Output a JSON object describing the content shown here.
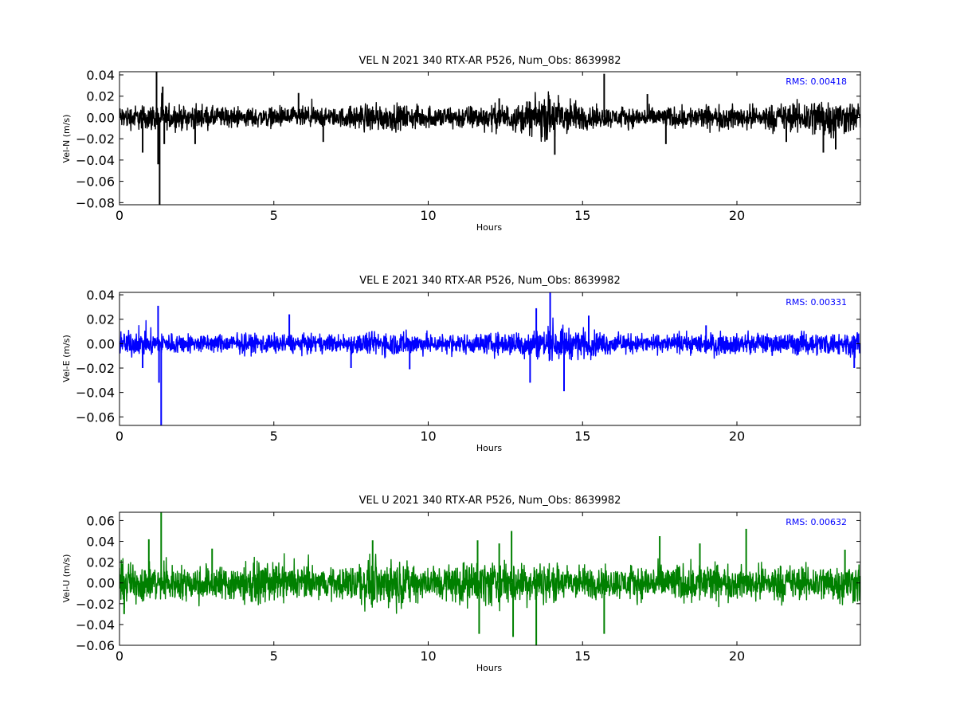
{
  "chart_data": [
    {
      "type": "line",
      "title": "VEL N 2021 340 RTX-AR  P526, Num_Obs: 8639982",
      "xlabel": "Hours",
      "ylabel": "Vel-N (m/s)",
      "xlim": [
        0,
        24
      ],
      "ylim": [
        -0.082,
        0.043
      ],
      "xticks": [
        0,
        5,
        10,
        15,
        20
      ],
      "xtick_labels": [
        "0",
        "5",
        "10",
        "15",
        "20"
      ],
      "yticks": [
        0.04,
        0.02,
        0.0,
        -0.02,
        -0.04,
        -0.06,
        -0.08
      ],
      "ytick_labels": [
        "0.04",
        "0.02",
        "0.00",
        "−0.02",
        "−0.04",
        "−0.06",
        "−0.08"
      ],
      "annotation": "RMS:  0.00418",
      "rms": 0.00418,
      "color": "#000000",
      "grid": false,
      "envelope": [
        [
          0,
          0.012
        ],
        [
          1,
          0.013
        ],
        [
          2,
          0.012
        ],
        [
          3,
          0.011
        ],
        [
          4,
          0.01
        ],
        [
          5,
          0.01
        ],
        [
          6,
          0.011
        ],
        [
          7,
          0.009
        ],
        [
          8,
          0.015
        ],
        [
          9,
          0.013
        ],
        [
          10,
          0.011
        ],
        [
          11,
          0.012
        ],
        [
          12,
          0.013
        ],
        [
          13,
          0.014
        ],
        [
          13.5,
          0.02
        ],
        [
          14,
          0.026
        ],
        [
          14.5,
          0.02
        ],
        [
          15,
          0.013
        ],
        [
          16,
          0.01
        ],
        [
          17,
          0.01
        ],
        [
          18,
          0.011
        ],
        [
          19,
          0.012
        ],
        [
          20,
          0.012
        ],
        [
          21,
          0.013
        ],
        [
          22,
          0.016
        ],
        [
          22.7,
          0.022
        ],
        [
          23.3,
          0.018
        ],
        [
          24,
          0.014
        ]
      ],
      "spikes": [
        [
          0.75,
          -0.033
        ],
        [
          1.2,
          0.043
        ],
        [
          1.25,
          -0.044
        ],
        [
          1.3,
          -0.082
        ],
        [
          1.4,
          0.029
        ],
        [
          1.45,
          -0.025
        ],
        [
          2.45,
          -0.025
        ],
        [
          5.8,
          0.023
        ],
        [
          6.6,
          -0.023
        ],
        [
          12.3,
          0.018
        ],
        [
          13.2,
          0.015
        ],
        [
          14.1,
          -0.035
        ],
        [
          15.7,
          0.041
        ],
        [
          17.1,
          0.022
        ],
        [
          17.7,
          -0.025
        ],
        [
          21.6,
          -0.023
        ],
        [
          22.8,
          -0.033
        ],
        [
          23.2,
          -0.03
        ]
      ]
    },
    {
      "type": "line",
      "title": "VEL E 2021 340 RTX-AR  P526, Num_Obs: 8639982",
      "xlabel": "Hours",
      "ylabel": "Vel-E (m/s)",
      "xlim": [
        0,
        24
      ],
      "ylim": [
        -0.067,
        0.042
      ],
      "xticks": [
        0,
        5,
        10,
        15,
        20
      ],
      "xtick_labels": [
        "0",
        "5",
        "10",
        "15",
        "20"
      ],
      "yticks": [
        0.04,
        0.02,
        0.0,
        -0.02,
        -0.04,
        -0.06
      ],
      "ytick_labels": [
        "0.04",
        "0.02",
        "0.00",
        "−0.02",
        "−0.04",
        "−0.06"
      ],
      "annotation": "RMS:  0.00331",
      "rms": 0.00331,
      "color": "#0000ff",
      "grid": false,
      "envelope": [
        [
          0,
          0.011
        ],
        [
          1,
          0.011
        ],
        [
          2,
          0.009
        ],
        [
          3,
          0.008
        ],
        [
          4,
          0.009
        ],
        [
          5,
          0.009
        ],
        [
          6,
          0.008
        ],
        [
          7,
          0.008
        ],
        [
          8,
          0.01
        ],
        [
          9,
          0.011
        ],
        [
          10,
          0.009
        ],
        [
          11,
          0.009
        ],
        [
          12,
          0.009
        ],
        [
          13,
          0.012
        ],
        [
          14,
          0.014
        ],
        [
          15,
          0.013
        ],
        [
          16,
          0.009
        ],
        [
          17,
          0.008
        ],
        [
          18,
          0.008
        ],
        [
          19,
          0.01
        ],
        [
          20,
          0.009
        ],
        [
          21,
          0.009
        ],
        [
          22,
          0.01
        ],
        [
          23,
          0.01
        ],
        [
          24,
          0.012
        ]
      ],
      "spikes": [
        [
          0.75,
          -0.02
        ],
        [
          1.25,
          0.031
        ],
        [
          1.28,
          -0.032
        ],
        [
          1.35,
          -0.067
        ],
        [
          5.5,
          0.024
        ],
        [
          7.5,
          -0.02
        ],
        [
          9.4,
          -0.021
        ],
        [
          13.3,
          -0.032
        ],
        [
          13.5,
          0.029
        ],
        [
          13.95,
          0.042
        ],
        [
          14.4,
          -0.039
        ],
        [
          15.2,
          0.023
        ],
        [
          19.0,
          0.015
        ],
        [
          23.8,
          -0.02
        ]
      ]
    },
    {
      "type": "line",
      "title": "VEL U 2021 340 RTX-AR  P526, Num_Obs: 8639982",
      "xlabel": "Hours",
      "ylabel": "Vel-U (m/s)",
      "xlim": [
        0,
        24
      ],
      "ylim": [
        -0.06,
        0.068
      ],
      "xticks": [
        0,
        5,
        10,
        15,
        20
      ],
      "xtick_labels": [
        "0",
        "5",
        "10",
        "15",
        "20"
      ],
      "yticks": [
        0.06,
        0.04,
        0.02,
        0.0,
        -0.02,
        -0.04,
        -0.06
      ],
      "ytick_labels": [
        "0.06",
        "0.04",
        "0.02",
        "0.00",
        "−0.02",
        "−0.04",
        "−0.06"
      ],
      "annotation": "RMS:  0.00632",
      "rms": 0.00632,
      "color": "#008000",
      "grid": false,
      "envelope": [
        [
          0,
          0.022
        ],
        [
          1,
          0.02
        ],
        [
          2,
          0.018
        ],
        [
          3,
          0.018
        ],
        [
          4,
          0.022
        ],
        [
          5,
          0.02
        ],
        [
          6,
          0.018
        ],
        [
          7,
          0.015
        ],
        [
          8,
          0.025
        ],
        [
          9,
          0.023
        ],
        [
          10,
          0.018
        ],
        [
          11,
          0.022
        ],
        [
          12,
          0.025
        ],
        [
          13,
          0.022
        ],
        [
          14,
          0.02
        ],
        [
          15,
          0.018
        ],
        [
          16,
          0.016
        ],
        [
          17,
          0.018
        ],
        [
          18,
          0.02
        ],
        [
          19,
          0.022
        ],
        [
          20,
          0.016
        ],
        [
          21,
          0.02
        ],
        [
          22,
          0.018
        ],
        [
          23,
          0.02
        ],
        [
          24,
          0.022
        ]
      ],
      "spikes": [
        [
          0.15,
          -0.03
        ],
        [
          0.95,
          0.042
        ],
        [
          1.35,
          0.068
        ],
        [
          3.0,
          0.033
        ],
        [
          8.2,
          0.041
        ],
        [
          11.6,
          0.041
        ],
        [
          11.65,
          -0.049
        ],
        [
          12.3,
          0.038
        ],
        [
          12.7,
          0.05
        ],
        [
          12.75,
          -0.052
        ],
        [
          13.5,
          -0.06
        ],
        [
          15.7,
          -0.049
        ],
        [
          17.5,
          0.045
        ],
        [
          18.8,
          0.038
        ],
        [
          20.3,
          0.052
        ],
        [
          23.5,
          0.032
        ]
      ]
    }
  ]
}
